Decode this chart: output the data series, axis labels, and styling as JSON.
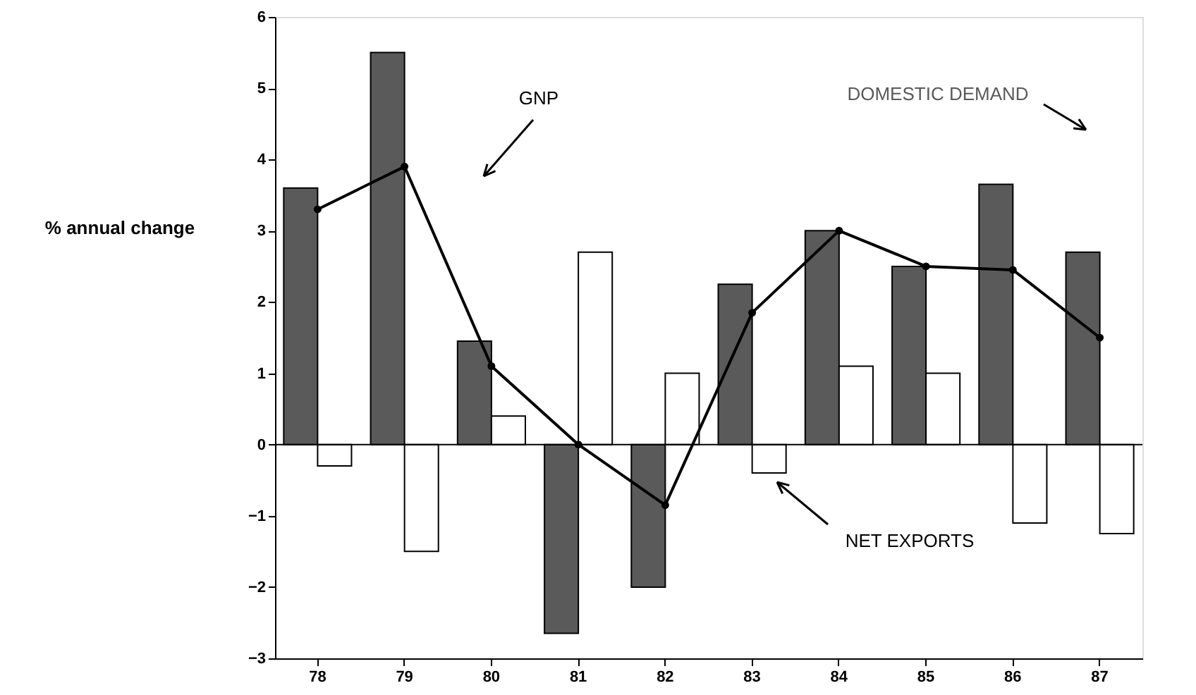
{
  "chart_data": {
    "type": "bar",
    "ylabel": "% annual change",
    "categories": [
      "78",
      "79",
      "80",
      "81",
      "82",
      "83",
      "84",
      "85",
      "86",
      "87"
    ],
    "series": [
      {
        "name": "DOMESTIC DEMAND",
        "color": "#5a5a5a",
        "values": [
          3.6,
          5.5,
          1.45,
          -2.65,
          -2.0,
          2.25,
          3.0,
          2.5,
          3.65,
          2.7
        ]
      },
      {
        "name": "NET EXPORTS",
        "color": "#ffffff",
        "values": [
          -0.3,
          -1.5,
          0.4,
          2.7,
          1.0,
          -0.4,
          1.1,
          1.0,
          -1.1,
          -1.25
        ]
      },
      {
        "name": "GNP",
        "type": "line",
        "color": "#000000",
        "values": [
          3.3,
          3.9,
          1.1,
          0.0,
          -0.85,
          1.85,
          3.0,
          2.5,
          2.45,
          1.5
        ]
      }
    ],
    "ylim": [
      -3,
      6
    ],
    "yticks": [
      -3,
      -2,
      -1,
      0,
      1,
      2,
      3,
      4,
      5,
      6
    ],
    "grid": false,
    "marker": "circle",
    "line_style": "solid",
    "ref_lines": [
      {
        "axis": "y",
        "value": 0
      }
    ]
  }
}
